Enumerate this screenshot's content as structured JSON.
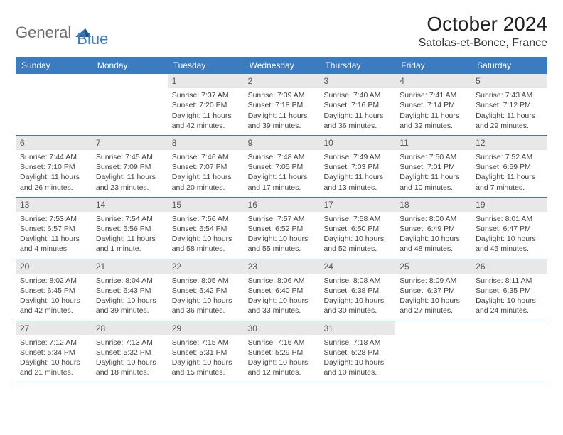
{
  "logo": {
    "word1": "General",
    "word2": "Blue",
    "mark_color": "#2f6fb0"
  },
  "title": "October 2024",
  "location": "Satolas-et-Bonce, France",
  "colors": {
    "header_bg": "#3b7bbf",
    "header_fg": "#ffffff",
    "daynum_bg": "#e8e8e8",
    "rule": "#3b7bbf",
    "text": "#444444"
  },
  "fonts": {
    "title_size": 28,
    "location_size": 16,
    "dow_size": 12,
    "body_size": 10.5
  },
  "days_of_week": [
    "Sunday",
    "Monday",
    "Tuesday",
    "Wednesday",
    "Thursday",
    "Friday",
    "Saturday"
  ],
  "weeks": [
    [
      null,
      null,
      {
        "n": "1",
        "sunrise": "7:37 AM",
        "sunset": "7:20 PM",
        "daylight": "11 hours and 42 minutes."
      },
      {
        "n": "2",
        "sunrise": "7:39 AM",
        "sunset": "7:18 PM",
        "daylight": "11 hours and 39 minutes."
      },
      {
        "n": "3",
        "sunrise": "7:40 AM",
        "sunset": "7:16 PM",
        "daylight": "11 hours and 36 minutes."
      },
      {
        "n": "4",
        "sunrise": "7:41 AM",
        "sunset": "7:14 PM",
        "daylight": "11 hours and 32 minutes."
      },
      {
        "n": "5",
        "sunrise": "7:43 AM",
        "sunset": "7:12 PM",
        "daylight": "11 hours and 29 minutes."
      }
    ],
    [
      {
        "n": "6",
        "sunrise": "7:44 AM",
        "sunset": "7:10 PM",
        "daylight": "11 hours and 26 minutes."
      },
      {
        "n": "7",
        "sunrise": "7:45 AM",
        "sunset": "7:09 PM",
        "daylight": "11 hours and 23 minutes."
      },
      {
        "n": "8",
        "sunrise": "7:46 AM",
        "sunset": "7:07 PM",
        "daylight": "11 hours and 20 minutes."
      },
      {
        "n": "9",
        "sunrise": "7:48 AM",
        "sunset": "7:05 PM",
        "daylight": "11 hours and 17 minutes."
      },
      {
        "n": "10",
        "sunrise": "7:49 AM",
        "sunset": "7:03 PM",
        "daylight": "11 hours and 13 minutes."
      },
      {
        "n": "11",
        "sunrise": "7:50 AM",
        "sunset": "7:01 PM",
        "daylight": "11 hours and 10 minutes."
      },
      {
        "n": "12",
        "sunrise": "7:52 AM",
        "sunset": "6:59 PM",
        "daylight": "11 hours and 7 minutes."
      }
    ],
    [
      {
        "n": "13",
        "sunrise": "7:53 AM",
        "sunset": "6:57 PM",
        "daylight": "11 hours and 4 minutes."
      },
      {
        "n": "14",
        "sunrise": "7:54 AM",
        "sunset": "6:56 PM",
        "daylight": "11 hours and 1 minute."
      },
      {
        "n": "15",
        "sunrise": "7:56 AM",
        "sunset": "6:54 PM",
        "daylight": "10 hours and 58 minutes."
      },
      {
        "n": "16",
        "sunrise": "7:57 AM",
        "sunset": "6:52 PM",
        "daylight": "10 hours and 55 minutes."
      },
      {
        "n": "17",
        "sunrise": "7:58 AM",
        "sunset": "6:50 PM",
        "daylight": "10 hours and 52 minutes."
      },
      {
        "n": "18",
        "sunrise": "8:00 AM",
        "sunset": "6:49 PM",
        "daylight": "10 hours and 48 minutes."
      },
      {
        "n": "19",
        "sunrise": "8:01 AM",
        "sunset": "6:47 PM",
        "daylight": "10 hours and 45 minutes."
      }
    ],
    [
      {
        "n": "20",
        "sunrise": "8:02 AM",
        "sunset": "6:45 PM",
        "daylight": "10 hours and 42 minutes."
      },
      {
        "n": "21",
        "sunrise": "8:04 AM",
        "sunset": "6:43 PM",
        "daylight": "10 hours and 39 minutes."
      },
      {
        "n": "22",
        "sunrise": "8:05 AM",
        "sunset": "6:42 PM",
        "daylight": "10 hours and 36 minutes."
      },
      {
        "n": "23",
        "sunrise": "8:06 AM",
        "sunset": "6:40 PM",
        "daylight": "10 hours and 33 minutes."
      },
      {
        "n": "24",
        "sunrise": "8:08 AM",
        "sunset": "6:38 PM",
        "daylight": "10 hours and 30 minutes."
      },
      {
        "n": "25",
        "sunrise": "8:09 AM",
        "sunset": "6:37 PM",
        "daylight": "10 hours and 27 minutes."
      },
      {
        "n": "26",
        "sunrise": "8:11 AM",
        "sunset": "6:35 PM",
        "daylight": "10 hours and 24 minutes."
      }
    ],
    [
      {
        "n": "27",
        "sunrise": "7:12 AM",
        "sunset": "5:34 PM",
        "daylight": "10 hours and 21 minutes."
      },
      {
        "n": "28",
        "sunrise": "7:13 AM",
        "sunset": "5:32 PM",
        "daylight": "10 hours and 18 minutes."
      },
      {
        "n": "29",
        "sunrise": "7:15 AM",
        "sunset": "5:31 PM",
        "daylight": "10 hours and 15 minutes."
      },
      {
        "n": "30",
        "sunrise": "7:16 AM",
        "sunset": "5:29 PM",
        "daylight": "10 hours and 12 minutes."
      },
      {
        "n": "31",
        "sunrise": "7:18 AM",
        "sunset": "5:28 PM",
        "daylight": "10 hours and 10 minutes."
      },
      null,
      null
    ]
  ],
  "labels": {
    "sunrise": "Sunrise: ",
    "sunset": "Sunset: ",
    "daylight": "Daylight: "
  }
}
